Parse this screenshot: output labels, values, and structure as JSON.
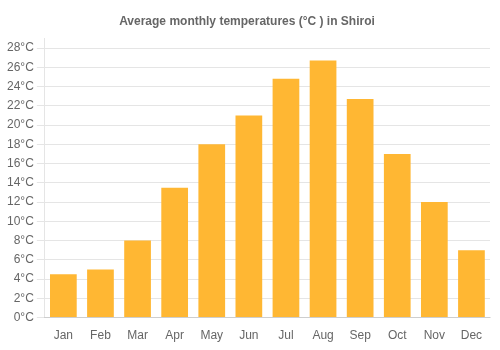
{
  "chart_data": {
    "type": "bar",
    "title": "Average monthly temperatures (°C ) in Shiroi",
    "categories": [
      "Jan",
      "Feb",
      "Mar",
      "Apr",
      "May",
      "Jun",
      "Jul",
      "Aug",
      "Sep",
      "Oct",
      "Nov",
      "Dec"
    ],
    "values": [
      4.5,
      5.0,
      8.0,
      13.5,
      18.0,
      21.0,
      24.8,
      26.7,
      22.7,
      17.0,
      12.0,
      7.0
    ],
    "color": "#FFB733",
    "ylim": [
      0,
      29
    ],
    "yticks": [
      {
        "value": 0,
        "label": "0°C"
      },
      {
        "value": 2,
        "label": "2°C"
      },
      {
        "value": 4,
        "label": "4°C"
      },
      {
        "value": 6,
        "label": "6°C"
      },
      {
        "value": 8,
        "label": "8°C"
      },
      {
        "value": 10,
        "label": "10°C"
      },
      {
        "value": 12,
        "label": "12°C"
      },
      {
        "value": 14,
        "label": "14°C"
      },
      {
        "value": 16,
        "label": "16°C"
      },
      {
        "value": 18,
        "label": "18°C"
      },
      {
        "value": 20,
        "label": "20°C"
      },
      {
        "value": 22,
        "label": "22°C"
      },
      {
        "value": 24,
        "label": "24°C"
      },
      {
        "value": 26,
        "label": "26°C"
      },
      {
        "value": 28,
        "label": "28°C"
      }
    ],
    "grid": true
  }
}
